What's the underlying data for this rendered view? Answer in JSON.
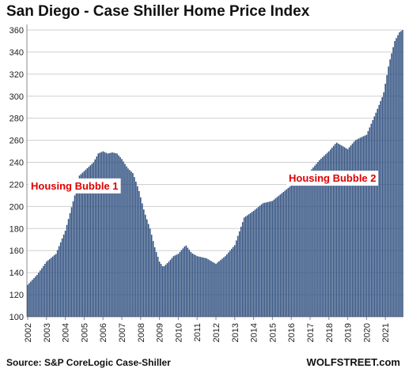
{
  "chart_data": {
    "type": "bar",
    "title": "San Diego - Case Shiller Home Price Index",
    "source": "Source: S&P CoreLogic Case-Shiller",
    "brand": "WOLFSTREET.com",
    "bar_color": "#2f4f7f",
    "annotation_color": "#e00000",
    "grid": true,
    "ylim": [
      100,
      365
    ],
    "yticks": [
      100,
      120,
      140,
      160,
      180,
      200,
      220,
      240,
      260,
      280,
      300,
      320,
      340,
      360
    ],
    "xlim": [
      2002.0,
      2021.92
    ],
    "xticks": [
      2002,
      2003,
      2004,
      2005,
      2006,
      2007,
      2008,
      2009,
      2010,
      2011,
      2012,
      2013,
      2014,
      2015,
      2016,
      2017,
      2018,
      2019,
      2020,
      2021
    ],
    "frequency": "monthly",
    "start": "2002-01",
    "annotations": [
      {
        "text": "Housing Bubble 1",
        "x": 2002.0,
        "y": 219
      },
      {
        "text": "Housing Bubble 2",
        "x": 2015.7,
        "y": 226
      }
    ],
    "keypoints": [
      [
        2002.0,
        129
      ],
      [
        2002.5,
        138
      ],
      [
        2003.0,
        150
      ],
      [
        2003.5,
        157
      ],
      [
        2004.0,
        178
      ],
      [
        2004.5,
        210
      ],
      [
        2004.75,
        228
      ],
      [
        2005.0,
        232
      ],
      [
        2005.5,
        240
      ],
      [
        2005.75,
        248
      ],
      [
        2006.0,
        250
      ],
      [
        2006.25,
        248
      ],
      [
        2006.5,
        249
      ],
      [
        2006.75,
        248
      ],
      [
        2007.0,
        243
      ],
      [
        2007.3,
        235
      ],
      [
        2007.6,
        230
      ],
      [
        2007.9,
        215
      ],
      [
        2008.2,
        195
      ],
      [
        2008.5,
        180
      ],
      [
        2008.75,
        163
      ],
      [
        2009.0,
        150
      ],
      [
        2009.2,
        145
      ],
      [
        2009.5,
        150
      ],
      [
        2009.75,
        155
      ],
      [
        2010.0,
        157
      ],
      [
        2010.4,
        165
      ],
      [
        2010.7,
        158
      ],
      [
        2011.0,
        155
      ],
      [
        2011.5,
        153
      ],
      [
        2012.0,
        148
      ],
      [
        2012.5,
        155
      ],
      [
        2013.0,
        165
      ],
      [
        2013.5,
        190
      ],
      [
        2014.0,
        196
      ],
      [
        2014.5,
        203
      ],
      [
        2015.0,
        205
      ],
      [
        2015.5,
        212
      ],
      [
        2016.0,
        219
      ],
      [
        2016.5,
        225
      ],
      [
        2017.0,
        232
      ],
      [
        2017.5,
        242
      ],
      [
        2018.0,
        250
      ],
      [
        2018.4,
        258
      ],
      [
        2018.8,
        254
      ],
      [
        2019.0,
        252
      ],
      [
        2019.4,
        260
      ],
      [
        2019.75,
        263
      ],
      [
        2020.0,
        265
      ],
      [
        2020.5,
        285
      ],
      [
        2020.9,
        302
      ],
      [
        2021.2,
        330
      ],
      [
        2021.5,
        350
      ],
      [
        2021.75,
        358
      ],
      [
        2021.92,
        360
      ]
    ]
  }
}
